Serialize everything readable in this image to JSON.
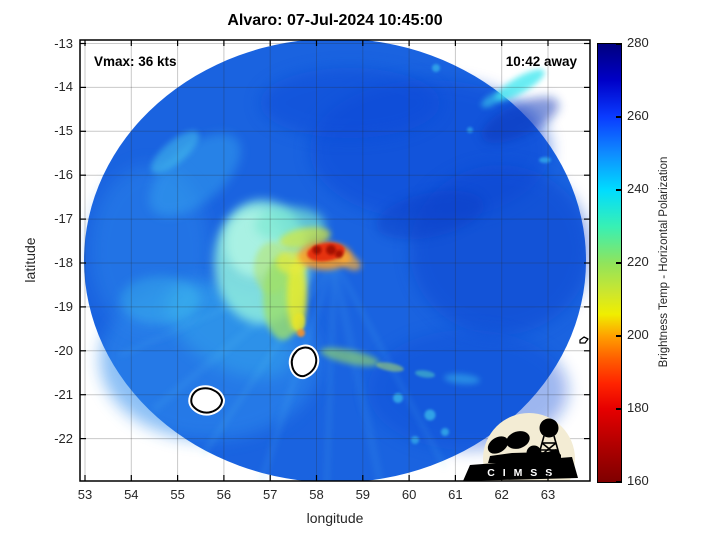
{
  "title": "Alvaro: 07-Jul-2024 10:45:00",
  "annotations": {
    "vmax": "Vmax: 36 kts",
    "time_away": "10:42 away"
  },
  "axes": {
    "xlabel": "longitude",
    "ylabel": "latitude",
    "x_ticks": [
      53,
      54,
      55,
      56,
      57,
      58,
      59,
      60,
      61,
      62,
      63
    ],
    "y_ticks": [
      -13,
      -14,
      -15,
      -16,
      -17,
      -18,
      -19,
      -20,
      -21,
      -22
    ]
  },
  "colorbar": {
    "label": "Brightness Temp - Horizontal Polarization",
    "ticks": [
      280,
      260,
      240,
      220,
      200,
      180,
      160
    ],
    "range": [
      160,
      280
    ],
    "colormap_stops": [
      {
        "t": 280,
        "c": "#00007f"
      },
      {
        "t": 270,
        "c": "#0000c8"
      },
      {
        "t": 260,
        "c": "#0a3cff"
      },
      {
        "t": 250,
        "c": "#0f8cff"
      },
      {
        "t": 240,
        "c": "#00dcff"
      },
      {
        "t": 230,
        "c": "#38f0b4"
      },
      {
        "t": 220,
        "c": "#90e45c"
      },
      {
        "t": 212,
        "c": "#cce62e"
      },
      {
        "t": 206,
        "c": "#f0ee00"
      },
      {
        "t": 200,
        "c": "#ffa000"
      },
      {
        "t": 194,
        "c": "#ff6000"
      },
      {
        "t": 187,
        "c": "#ff2400"
      },
      {
        "t": 180,
        "c": "#e60000"
      },
      {
        "t": 170,
        "c": "#b00000"
      },
      {
        "t": 160,
        "c": "#7f0000"
      }
    ]
  },
  "logo": {
    "text": "C I M S S"
  },
  "chart_data": {
    "type": "heatmap",
    "title": "Alvaro: 07-Jul-2024 10:45:00",
    "xlabel": "longitude",
    "ylabel": "latitude",
    "xlim": [
      52.9,
      64.0
    ],
    "ylim": [
      -23.0,
      -12.9
    ],
    "x_ticks": [
      53,
      54,
      55,
      56,
      57,
      58,
      59,
      60,
      61,
      62,
      63
    ],
    "y_ticks": [
      -13,
      -14,
      -15,
      -16,
      -17,
      -18,
      -19,
      -20,
      -21,
      -22
    ],
    "colorbar": {
      "label": "Brightness Temp - Horizontal Polarization",
      "range_K": [
        160,
        280
      ],
      "ticks": [
        160,
        180,
        200,
        220,
        240,
        260,
        280
      ],
      "colormap": "reversed-jet (280=dark blue, 240=cyan, 220=green, 200=orange, 160=dark red)"
    },
    "storm": {
      "name": "Alvaro",
      "datetime": "07-Jul-2024 10:45:00",
      "vmax_kts": 36,
      "time_offset": "10:42 away"
    },
    "swath": {
      "shape": "circular microwave swath",
      "center_lon": 58.4,
      "center_lat": -17.9,
      "radius_deg": 5.2,
      "outside_fill": "white"
    },
    "features": [
      {
        "name": "eye/eyewall warm arc (red, darkest red spots)",
        "lon": 58.2,
        "lat": -17.75,
        "tb_K": 165
      },
      {
        "name": "orange ring around warm arc",
        "lon": 58.1,
        "lat": -17.8,
        "tb_K": 195
      },
      {
        "name": "yellow inner-core hook extending south",
        "lon": 57.7,
        "lat": -18.6,
        "tb_K": 208
      },
      {
        "name": "yellow-green convective mass west of center",
        "lon": 57.2,
        "lat": -18.2,
        "tb_K": 218
      },
      {
        "name": "pale cyan rainband shield west/northwest of center",
        "lon": 56.7,
        "lat": -17.9,
        "tb_K": 235
      },
      {
        "name": "yellow-green spiral band southeast of center",
        "lon": 58.7,
        "lat": -20.0,
        "tb_K": 220
      },
      {
        "name": "ambient ocean field (blue)",
        "tb_K": 258
      },
      {
        "name": "darker blue clear regions east and northeast",
        "tb_K": 268
      },
      {
        "name": "island coastline outline: Mauritius",
        "lon": 57.75,
        "lat": -20.25
      },
      {
        "name": "island coastline outline: Reunion",
        "lon": 55.65,
        "lat": -21.1
      },
      {
        "name": "island coastline outline: Rodrigues (small, east edge)",
        "lon": 63.8,
        "lat": -19.75
      }
    ],
    "grid": true,
    "legend_position": "right colorbar",
    "logo": "CIMSS (bottom right, inside axes)"
  }
}
